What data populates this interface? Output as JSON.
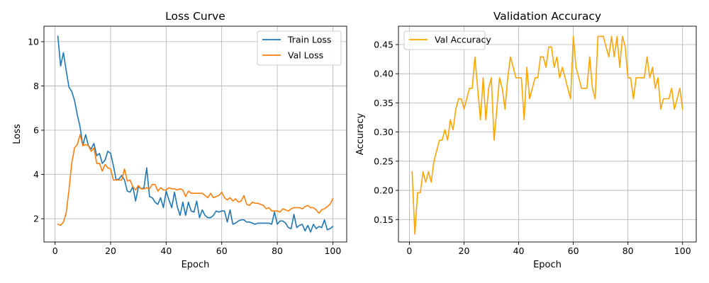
{
  "chart_data": [
    {
      "type": "line",
      "title": "Loss Curve",
      "xlabel": "Epoch",
      "ylabel": "Loss",
      "xlim": [
        -4,
        105
      ],
      "ylim": [
        0.95,
        10.7
      ],
      "xticks": [
        0,
        20,
        40,
        60,
        80,
        100
      ],
      "yticks": [
        2,
        4,
        6,
        8,
        10
      ],
      "grid": true,
      "legend_position": "upper-right",
      "series": [
        {
          "name": "Train Loss",
          "color": "#1f77b4",
          "x": [
            1,
            2,
            3,
            4,
            5,
            6,
            7,
            8,
            9,
            10,
            11,
            12,
            13,
            14,
            15,
            16,
            17,
            18,
            19,
            20,
            21,
            22,
            23,
            24,
            25,
            26,
            27,
            28,
            29,
            30,
            31,
            32,
            33,
            34,
            35,
            36,
            37,
            38,
            39,
            40,
            41,
            42,
            43,
            44,
            45,
            46,
            47,
            48,
            49,
            50,
            51,
            52,
            53,
            54,
            55,
            56,
            57,
            58,
            59,
            60,
            61,
            62,
            63,
            64,
            65,
            66,
            67,
            68,
            69,
            70,
            71,
            72,
            73,
            74,
            75,
            76,
            77,
            78,
            79,
            80,
            81,
            82,
            83,
            84,
            85,
            86,
            87,
            88,
            89,
            90,
            91,
            92,
            93,
            94,
            95,
            96,
            97,
            98,
            99,
            100
          ],
          "values": [
            10.25,
            8.9,
            9.5,
            8.7,
            7.95,
            7.75,
            7.35,
            6.7,
            6.15,
            5.3,
            5.8,
            5.3,
            5.15,
            5.4,
            4.85,
            4.95,
            4.5,
            4.65,
            5.05,
            4.95,
            4.4,
            3.75,
            3.8,
            3.95,
            3.75,
            3.25,
            3.2,
            3.45,
            2.8,
            3.45,
            3.35,
            3.4,
            4.3,
            3.0,
            2.95,
            2.75,
            2.65,
            2.95,
            2.5,
            3.25,
            2.85,
            2.5,
            3.2,
            2.55,
            2.15,
            2.75,
            2.15,
            2.75,
            2.35,
            2.3,
            2.8,
            2.05,
            2.4,
            2.15,
            2.05,
            2.05,
            2.15,
            2.35,
            2.3,
            2.35,
            2.35,
            1.85,
            2.4,
            1.75,
            1.8,
            1.9,
            1.95,
            1.95,
            1.85,
            1.85,
            1.8,
            1.75,
            1.8,
            1.8,
            1.8,
            1.8,
            1.8,
            1.75,
            2.3,
            1.75,
            1.9,
            1.9,
            1.8,
            1.6,
            1.55,
            2.2,
            1.6,
            1.7,
            1.75,
            1.45,
            1.7,
            1.4,
            1.75,
            1.55,
            1.65,
            1.6,
            1.95,
            1.5,
            1.55,
            1.65
          ]
        },
        {
          "name": "Val Loss",
          "color": "#ff7f0e",
          "x": [
            1,
            2,
            3,
            4,
            5,
            6,
            7,
            8,
            9,
            10,
            11,
            12,
            13,
            14,
            15,
            16,
            17,
            18,
            19,
            20,
            21,
            22,
            23,
            24,
            25,
            26,
            27,
            28,
            29,
            30,
            31,
            32,
            33,
            34,
            35,
            36,
            37,
            38,
            39,
            40,
            41,
            42,
            43,
            44,
            45,
            46,
            47,
            48,
            49,
            50,
            51,
            52,
            53,
            54,
            55,
            56,
            57,
            58,
            59,
            60,
            61,
            62,
            63,
            64,
            65,
            66,
            67,
            68,
            69,
            70,
            71,
            72,
            73,
            74,
            75,
            76,
            77,
            78,
            79,
            80,
            81,
            82,
            83,
            84,
            85,
            86,
            87,
            88,
            89,
            90,
            91,
            92,
            93,
            94,
            95,
            96,
            97,
            98,
            99,
            100
          ],
          "values": [
            1.75,
            1.7,
            1.85,
            2.25,
            3.3,
            4.5,
            5.2,
            5.35,
            5.8,
            5.3,
            5.35,
            5.3,
            5.05,
            5.2,
            4.5,
            4.5,
            4.15,
            4.45,
            4.3,
            4.25,
            3.75,
            3.75,
            3.75,
            3.75,
            4.25,
            3.7,
            3.75,
            3.45,
            3.3,
            3.5,
            3.35,
            3.35,
            3.4,
            3.35,
            3.55,
            3.55,
            3.25,
            3.4,
            3.3,
            3.3,
            3.4,
            3.35,
            3.35,
            3.3,
            3.35,
            3.3,
            3.0,
            3.25,
            3.15,
            3.15,
            3.15,
            3.15,
            3.15,
            3.05,
            2.95,
            3.15,
            2.95,
            3.0,
            3.05,
            3.2,
            2.95,
            2.85,
            2.95,
            2.8,
            2.9,
            2.75,
            2.8,
            3.05,
            2.65,
            2.6,
            2.75,
            2.7,
            2.7,
            2.65,
            2.6,
            2.45,
            2.5,
            2.35,
            2.35,
            2.35,
            2.3,
            2.45,
            2.4,
            2.35,
            2.45,
            2.5,
            2.5,
            2.5,
            2.45,
            2.55,
            2.6,
            2.5,
            2.5,
            2.4,
            2.25,
            2.4,
            2.45,
            2.55,
            2.65,
            2.9
          ]
        }
      ]
    },
    {
      "type": "line",
      "title": "Validation Accuracy",
      "xlabel": "Epoch",
      "ylabel": "Accuracy",
      "xlim": [
        -4,
        105
      ],
      "ylim": [
        0.1115,
        0.4815
      ],
      "xticks": [
        0,
        20,
        40,
        60,
        80,
        100
      ],
      "yticks": [
        0.15,
        0.2,
        0.25,
        0.3,
        0.35,
        0.4,
        0.45
      ],
      "grid": true,
      "legend_position": "upper-left",
      "series": [
        {
          "name": "Val Accuracy",
          "color": "#ffa500",
          "x": [
            1,
            2,
            3,
            4,
            5,
            6,
            7,
            8,
            9,
            10,
            11,
            12,
            13,
            14,
            15,
            16,
            17,
            18,
            19,
            20,
            21,
            22,
            23,
            24,
            25,
            26,
            27,
            28,
            29,
            30,
            31,
            32,
            33,
            34,
            35,
            36,
            37,
            38,
            39,
            40,
            41,
            42,
            43,
            44,
            45,
            46,
            47,
            48,
            49,
            50,
            51,
            52,
            53,
            54,
            55,
            56,
            57,
            58,
            59,
            60,
            61,
            62,
            63,
            64,
            65,
            66,
            67,
            68,
            69,
            70,
            71,
            72,
            73,
            74,
            75,
            76,
            77,
            78,
            79,
            80,
            81,
            82,
            83,
            84,
            85,
            86,
            87,
            88,
            89,
            90,
            91,
            92,
            93,
            94,
            95,
            96,
            97,
            98,
            99,
            100
          ],
          "values": [
            0.232,
            0.125,
            0.196,
            0.196,
            0.232,
            0.214,
            0.232,
            0.214,
            0.25,
            0.268,
            0.286,
            0.286,
            0.304,
            0.286,
            0.321,
            0.304,
            0.339,
            0.357,
            0.357,
            0.339,
            0.357,
            0.375,
            0.375,
            0.429,
            0.375,
            0.321,
            0.393,
            0.321,
            0.375,
            0.393,
            0.286,
            0.339,
            0.393,
            0.375,
            0.339,
            0.393,
            0.429,
            0.411,
            0.393,
            0.393,
            0.393,
            0.321,
            0.411,
            0.357,
            0.375,
            0.393,
            0.393,
            0.429,
            0.429,
            0.411,
            0.446,
            0.446,
            0.411,
            0.429,
            0.393,
            0.411,
            0.393,
            0.375,
            0.357,
            0.464,
            0.411,
            0.393,
            0.375,
            0.375,
            0.375,
            0.429,
            0.375,
            0.357,
            0.464,
            0.464,
            0.464,
            0.446,
            0.429,
            0.464,
            0.429,
            0.464,
            0.411,
            0.464,
            0.446,
            0.393,
            0.393,
            0.357,
            0.393,
            0.393,
            0.393,
            0.393,
            0.429,
            0.393,
            0.411,
            0.375,
            0.393,
            0.339,
            0.357,
            0.357,
            0.357,
            0.375,
            0.339,
            0.357,
            0.375,
            0.339
          ]
        }
      ]
    }
  ]
}
